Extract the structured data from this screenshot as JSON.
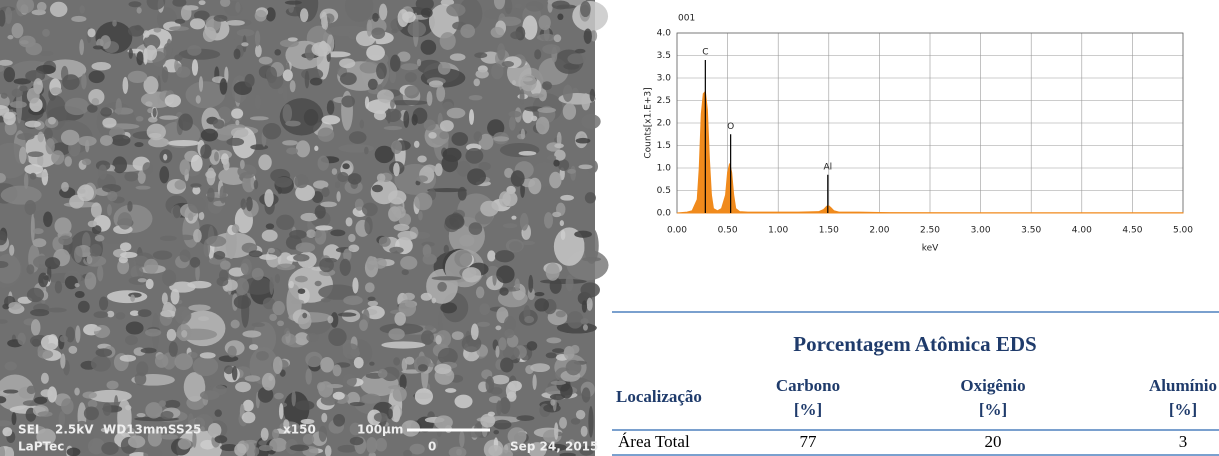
{
  "sem": {
    "labels": [
      "SEI",
      "2.5kV",
      "WD13mmSS25",
      "x150",
      "100μm",
      "LaPTec",
      "0",
      "Sep 24, 2015"
    ]
  },
  "chart_data": {
    "type": "area",
    "title": "001",
    "y_label": "Counts[x1.E+3]",
    "x_label": "keV",
    "color": "#f08a1c",
    "grid": true,
    "xlim": [
      0,
      5
    ],
    "ylim": [
      0,
      4
    ],
    "xticks": [
      {
        "value": 0,
        "label": "0.00"
      },
      {
        "value": 0.5,
        "label": "0.50"
      },
      {
        "value": 1,
        "label": "1.00"
      },
      {
        "value": 1.5,
        "label": "1.50"
      },
      {
        "value": 2,
        "label": "2.00"
      },
      {
        "value": 2.5,
        "label": "2.50"
      },
      {
        "value": 3,
        "label": "3.00"
      },
      {
        "value": 3.5,
        "label": "3.50"
      },
      {
        "value": 4,
        "label": "4.00"
      },
      {
        "value": 4.5,
        "label": "4.50"
      },
      {
        "value": 5,
        "label": "5.00"
      }
    ],
    "yticks": [
      {
        "value": 0,
        "label": "0.0"
      },
      0.5,
      {
        "value": 1,
        "label": "1.0"
      },
      1.5,
      {
        "value": 2,
        "label": "2.0"
      },
      2.5,
      {
        "value": 3,
        "label": "3.0"
      },
      3.5,
      {
        "value": 4,
        "label": "4.0"
      }
    ],
    "x": [
      0.0,
      0.1,
      0.15,
      0.2,
      0.22,
      0.24,
      0.26,
      0.28,
      0.3,
      0.32,
      0.34,
      0.36,
      0.4,
      0.44,
      0.48,
      0.5,
      0.52,
      0.54,
      0.56,
      0.58,
      0.62,
      0.7,
      0.8,
      1.0,
      1.2,
      1.4,
      1.45,
      1.48,
      1.5,
      1.52,
      1.55,
      1.6,
      1.8,
      2.0,
      3.0,
      4.0,
      5.0
    ],
    "values": [
      0,
      0.02,
      0.05,
      0.3,
      1.0,
      2.2,
      2.65,
      2.7,
      2.3,
      1.2,
      0.4,
      0.1,
      0.05,
      0.1,
      0.4,
      0.9,
      1.1,
      0.9,
      0.4,
      0.1,
      0.03,
      0.02,
      0.02,
      0.02,
      0.02,
      0.03,
      0.08,
      0.15,
      0.16,
      0.12,
      0.05,
      0.02,
      0.02,
      0.01,
      0.005,
      0.005,
      0.005
    ],
    "annotations": [
      {
        "label": "C",
        "x": 0.28,
        "y": 3.4
      },
      {
        "label": "O",
        "x": 0.53,
        "y": 1.75
      },
      {
        "label": "Al",
        "x": 1.49,
        "y": 0.85
      }
    ]
  },
  "table": {
    "title": "Porcentagem Atômica EDS",
    "headers": [
      [
        "Localização"
      ],
      [
        "Carbono",
        "[%]"
      ],
      [
        "Oxigênio",
        "[%]"
      ],
      [
        "Alumínio",
        "[%]"
      ]
    ],
    "rows": [
      [
        "Área Total",
        77,
        20,
        3
      ]
    ]
  }
}
